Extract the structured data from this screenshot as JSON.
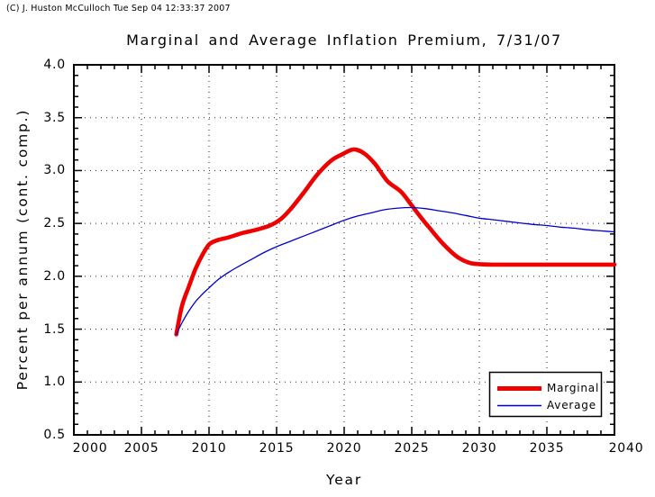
{
  "copyright": "(C) J. Huston McCulloch Tue Sep 04 12:33:37 2007",
  "chart_data": {
    "type": "line",
    "title": "Marginal and Average Inflation Premium, 7/31/07",
    "xlabel": "Year",
    "ylabel": "Percent per annum (cont. comp.)",
    "xlim": [
      2000,
      2040
    ],
    "ylim": [
      0.5,
      4.0
    ],
    "x_ticks": [
      2000,
      2005,
      2010,
      2015,
      2020,
      2025,
      2030,
      2035,
      2040
    ],
    "x_tick_labels": [
      "2000",
      "2005",
      "2010",
      "2015",
      "2020",
      "2025",
      "2030",
      "2035",
      "2040"
    ],
    "x_minor_step": 1,
    "y_ticks": [
      4.0,
      3.5,
      3.0,
      2.5,
      2.0,
      1.5,
      1.0,
      0.5
    ],
    "y_tick_labels": [
      "4.0",
      "3.5",
      "3.0",
      "2.5",
      "2.0",
      "1.5",
      "1.0",
      "0.5"
    ],
    "y_minor_step": 0.1,
    "grid_style": "dotted",
    "x_grid": [
      2005,
      2010,
      2015,
      2020,
      2025,
      2030,
      2035
    ],
    "y_grid": [
      1.0,
      1.5,
      2.0,
      2.5,
      3.0,
      3.5
    ],
    "legend_position": "bottom-right",
    "axis_color": "#000000",
    "background_color": "#ffffff",
    "series": [
      {
        "name": "Marginal",
        "color": "#ee0000",
        "width": 4.6,
        "points": [
          [
            2007.58,
            1.45
          ],
          [
            2008,
            1.72
          ],
          [
            2008.5,
            1.9
          ],
          [
            2009,
            2.07
          ],
          [
            2009.5,
            2.2
          ],
          [
            2010,
            2.3
          ],
          [
            2010.6,
            2.34
          ],
          [
            2011.5,
            2.37
          ],
          [
            2012.5,
            2.41
          ],
          [
            2013.5,
            2.44
          ],
          [
            2014.5,
            2.48
          ],
          [
            2015.3,
            2.54
          ],
          [
            2016,
            2.63
          ],
          [
            2017,
            2.79
          ],
          [
            2018,
            2.96
          ],
          [
            2019,
            3.09
          ],
          [
            2019.8,
            3.15
          ],
          [
            2020.7,
            3.2
          ],
          [
            2021.5,
            3.16
          ],
          [
            2022.3,
            3.06
          ],
          [
            2023.2,
            2.9
          ],
          [
            2024.2,
            2.8
          ],
          [
            2025,
            2.67
          ],
          [
            2025.6,
            2.57
          ],
          [
            2026.3,
            2.46
          ],
          [
            2027.3,
            2.31
          ],
          [
            2028.3,
            2.19
          ],
          [
            2029.2,
            2.13
          ],
          [
            2030,
            2.115
          ],
          [
            2031,
            2.11
          ],
          [
            2033,
            2.11
          ],
          [
            2035,
            2.11
          ],
          [
            2037,
            2.11
          ],
          [
            2040,
            2.11
          ]
        ]
      },
      {
        "name": "Average",
        "color": "#0000cc",
        "width": 1.3,
        "points": [
          [
            2007.58,
            1.45
          ],
          [
            2008,
            1.56
          ],
          [
            2008.5,
            1.67
          ],
          [
            2009,
            1.76
          ],
          [
            2009.5,
            1.83
          ],
          [
            2010,
            1.89
          ],
          [
            2010.5,
            1.95
          ],
          [
            2011,
            2.0
          ],
          [
            2012,
            2.08
          ],
          [
            2013,
            2.15
          ],
          [
            2014,
            2.22
          ],
          [
            2015,
            2.28
          ],
          [
            2016,
            2.33
          ],
          [
            2017,
            2.38
          ],
          [
            2018,
            2.43
          ],
          [
            2019,
            2.48
          ],
          [
            2020,
            2.53
          ],
          [
            2021,
            2.57
          ],
          [
            2022,
            2.6
          ],
          [
            2023,
            2.63
          ],
          [
            2024,
            2.645
          ],
          [
            2025,
            2.65
          ],
          [
            2026,
            2.64
          ],
          [
            2027,
            2.62
          ],
          [
            2028,
            2.6
          ],
          [
            2029,
            2.575
          ],
          [
            2030,
            2.55
          ],
          [
            2031,
            2.535
          ],
          [
            2032,
            2.52
          ],
          [
            2033,
            2.505
          ],
          [
            2034,
            2.49
          ],
          [
            2035,
            2.48
          ],
          [
            2036,
            2.465
          ],
          [
            2037,
            2.455
          ],
          [
            2038,
            2.44
          ],
          [
            2039,
            2.43
          ],
          [
            2040,
            2.42
          ]
        ]
      }
    ]
  }
}
